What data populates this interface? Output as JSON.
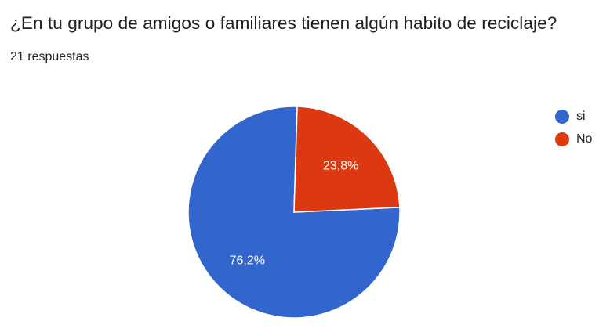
{
  "question": {
    "title": "¿En tu grupo de amigos o familiares tienen algún habito de reciclaje?",
    "response_count": "21 respuestas"
  },
  "chart_data": {
    "type": "pie",
    "title": "¿En tu grupo de amigos o familiares tienen algún habito de reciclaje?",
    "categories": [
      "si",
      "No"
    ],
    "values": [
      76.2,
      23.8
    ],
    "data_labels": [
      "76,2%",
      "23,8%"
    ],
    "colors": [
      "#3366cc",
      "#dc3912"
    ],
    "legend_position": "right"
  }
}
